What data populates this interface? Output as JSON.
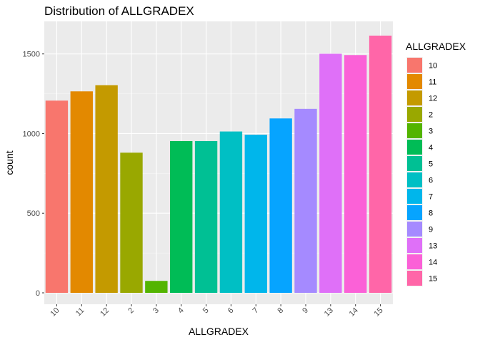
{
  "chart_data": {
    "type": "bar",
    "title": "Distribution of ALLGRADEX",
    "xlabel": "ALLGRADEX",
    "ylabel": "count",
    "categories": [
      "10",
      "11",
      "12",
      "2",
      "3",
      "4",
      "5",
      "6",
      "7",
      "8",
      "9",
      "13",
      "14",
      "15"
    ],
    "values": [
      1207,
      1265,
      1304,
      880,
      75,
      953,
      953,
      1013,
      993,
      1095,
      1155,
      1501,
      1493,
      1615
    ],
    "colors": [
      "#F8766D",
      "#E38900",
      "#C49A00",
      "#99A800",
      "#53B400",
      "#00BC56",
      "#00C094",
      "#00BFC4",
      "#00B6EB",
      "#06A4FF",
      "#A58AFF",
      "#DF70F8",
      "#FB61D7",
      "#FF66A8"
    ],
    "ylim": [
      0,
      1700
    ],
    "yticks": [
      0,
      500,
      1000,
      1500
    ],
    "grid": true,
    "legend": {
      "title": "ALLGRADEX",
      "position": "right",
      "entries": [
        "10",
        "11",
        "12",
        "2",
        "3",
        "4",
        "5",
        "6",
        "7",
        "8",
        "9",
        "13",
        "14",
        "15"
      ]
    }
  }
}
